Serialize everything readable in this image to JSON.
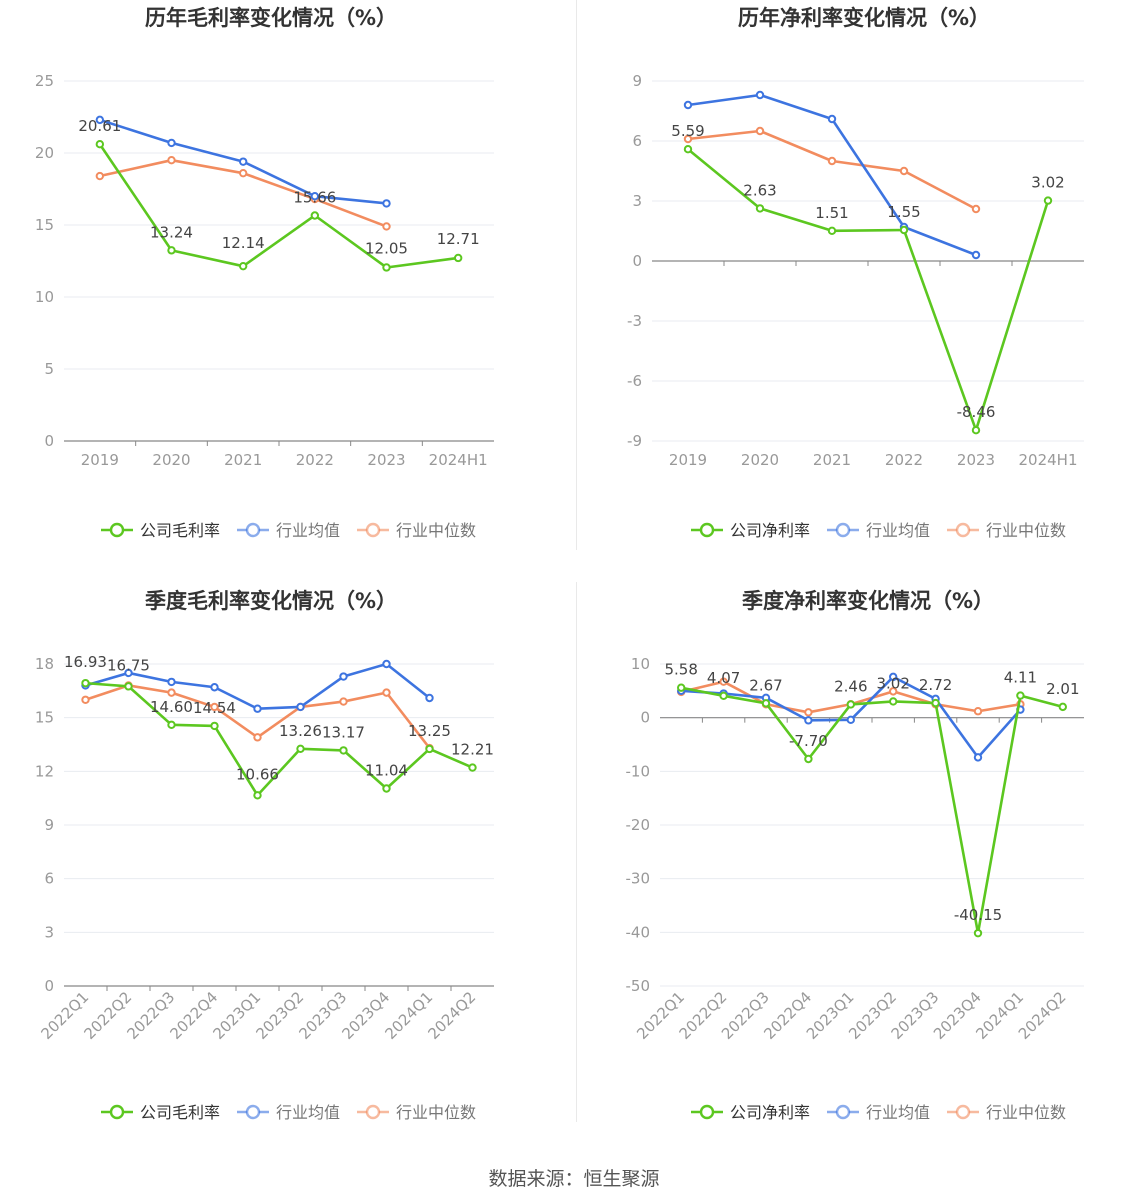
{
  "source_text": "数据来源：恒生聚源",
  "colors": {
    "company": "#5cc720",
    "industry_avg": "#3d74e0",
    "industry_median": "#f28c5f"
  },
  "chart_data": [
    {
      "type": "line",
      "title": "历年毛利率变化情况（%）",
      "categories": [
        "2019",
        "2020",
        "2021",
        "2022",
        "2023",
        "2024H1"
      ],
      "ylim": [
        0,
        25
      ],
      "yticks": [
        0,
        5,
        10,
        15,
        20,
        25
      ],
      "grid": true,
      "legend_position": "bottom",
      "series": [
        {
          "key": "company",
          "name": "公司毛利率",
          "values": [
            20.61,
            13.24,
            12.14,
            15.66,
            12.05,
            12.71
          ],
          "labels": [
            "20.61",
            "13.24",
            "12.14",
            "15.66",
            "12.05",
            "12.71"
          ]
        },
        {
          "key": "industry_avg",
          "name": "行业均值",
          "values": [
            22.3,
            20.7,
            19.4,
            17.0,
            16.5,
            null
          ]
        },
        {
          "key": "industry_median",
          "name": "行业中位数",
          "values": [
            18.4,
            19.5,
            18.6,
            16.8,
            14.9,
            null
          ]
        }
      ]
    },
    {
      "type": "line",
      "title": "历年净利率变化情况（%）",
      "categories": [
        "2019",
        "2020",
        "2021",
        "2022",
        "2023",
        "2024H1"
      ],
      "ylim": [
        -9,
        9
      ],
      "yticks": [
        -9,
        -6,
        -3,
        0,
        3,
        6,
        9
      ],
      "grid": true,
      "legend_position": "bottom",
      "series": [
        {
          "key": "company",
          "name": "公司净利率",
          "values": [
            5.59,
            2.63,
            1.51,
            1.55,
            -8.46,
            3.02
          ],
          "labels": [
            "5.59",
            "2.63",
            "1.51",
            "1.55",
            "-8.46",
            "3.02"
          ]
        },
        {
          "key": "industry_avg",
          "name": "行业均值",
          "values": [
            7.8,
            8.3,
            7.1,
            1.7,
            0.3,
            null
          ]
        },
        {
          "key": "industry_median",
          "name": "行业中位数",
          "values": [
            6.1,
            6.5,
            5.0,
            4.5,
            2.6,
            null
          ]
        }
      ]
    },
    {
      "type": "line",
      "title": "季度毛利率变化情况（%）",
      "categories": [
        "2022Q1",
        "2022Q2",
        "2022Q3",
        "2022Q4",
        "2023Q1",
        "2023Q2",
        "2023Q3",
        "2023Q4",
        "2024Q1",
        "2024Q2"
      ],
      "ylim": [
        0,
        18
      ],
      "yticks": [
        0,
        3,
        6,
        9,
        12,
        15,
        18
      ],
      "grid": true,
      "legend_position": "bottom",
      "series": [
        {
          "key": "company",
          "name": "公司毛利率",
          "values": [
            16.93,
            16.75,
            14.6,
            14.54,
            10.66,
            13.26,
            13.17,
            11.04,
            13.25,
            12.21
          ],
          "labels": [
            "16.93",
            "16.75",
            "14.60",
            "14.54",
            "10.66",
            "13.26",
            "13.17",
            "11.04",
            "13.25",
            "12.21"
          ]
        },
        {
          "key": "industry_avg",
          "name": "行业均值",
          "values": [
            16.8,
            17.5,
            17.0,
            16.7,
            15.5,
            15.6,
            17.3,
            18.0,
            16.1,
            null
          ]
        },
        {
          "key": "industry_median",
          "name": "行业中位数",
          "values": [
            16.0,
            16.8,
            16.4,
            15.6,
            13.9,
            15.6,
            15.9,
            16.4,
            13.3,
            null
          ]
        }
      ]
    },
    {
      "type": "line",
      "title": "季度净利率变化情况（%）",
      "categories": [
        "2022Q1",
        "2022Q2",
        "2022Q3",
        "2022Q4",
        "2023Q1",
        "2023Q2",
        "2023Q3",
        "2023Q4",
        "2024Q1",
        "2024Q2"
      ],
      "ylim": [
        -50,
        10
      ],
      "yticks": [
        -50,
        -40,
        -30,
        -20,
        -10,
        0,
        10
      ],
      "grid": true,
      "legend_position": "bottom",
      "series": [
        {
          "key": "company",
          "name": "公司净利率",
          "values": [
            5.58,
            4.07,
            2.67,
            -7.7,
            2.46,
            3.02,
            2.72,
            -40.15,
            4.11,
            2.01
          ],
          "labels": [
            "5.58",
            "4.07",
            "2.67",
            "-7.70",
            "2.46",
            "3.02",
            "2.72",
            "-40.15",
            "4.11",
            "2.01"
          ]
        },
        {
          "key": "industry_avg",
          "name": "行业均值",
          "values": [
            5.0,
            4.5,
            3.7,
            -0.5,
            -0.4,
            7.6,
            3.5,
            -7.4,
            1.5,
            null
          ]
        },
        {
          "key": "industry_median",
          "name": "行业中位数",
          "values": [
            4.8,
            6.7,
            2.5,
            1.0,
            2.5,
            4.9,
            2.5,
            1.2,
            2.5,
            null
          ]
        }
      ]
    }
  ]
}
